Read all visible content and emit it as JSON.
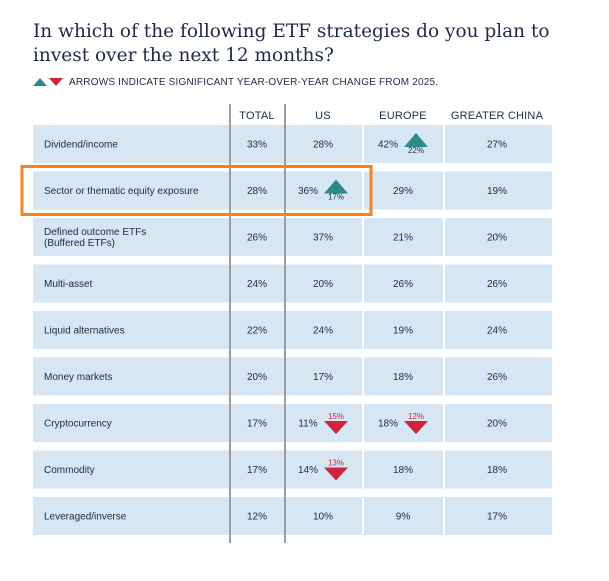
{
  "title": "In which of the following ETF strategies do you plan to invest over the next 12 months?",
  "legend_note": "ARROWS INDICATE SIGNIFICANT YEAR-OVER-YEAR CHANGE FROM 2025.",
  "colors": {
    "row_bg": "#d6e6f3",
    "text": "#1f2a44",
    "up": "#2e8b8b",
    "down": "#d0243c",
    "highlight": "#f5821f",
    "divider": "#3a3a3a"
  },
  "chart_data": {
    "type": "table",
    "columns": [
      "TOTAL",
      "US",
      "EUROPE",
      "GREATER CHINA"
    ],
    "rows": [
      {
        "label": "Dividend/income",
        "values": [
          "33%",
          "28%",
          "42%",
          "27%"
        ],
        "changes": [
          null,
          null,
          {
            "dir": "up",
            "value": "22%"
          },
          null
        ],
        "highlight": false
      },
      {
        "label": "Sector or thematic equity exposure",
        "values": [
          "28%",
          "36%",
          "29%",
          "19%"
        ],
        "changes": [
          null,
          {
            "dir": "up",
            "value": "17%"
          },
          null,
          null
        ],
        "highlight": true
      },
      {
        "label": "Defined outcome ETFs\n(Buffered ETFs)",
        "values": [
          "26%",
          "37%",
          "21%",
          "20%"
        ],
        "changes": [
          null,
          null,
          null,
          null
        ],
        "highlight": false
      },
      {
        "label": "Multi-asset",
        "values": [
          "24%",
          "20%",
          "26%",
          "26%"
        ],
        "changes": [
          null,
          null,
          null,
          null
        ],
        "highlight": false
      },
      {
        "label": "Liquid alternatives",
        "values": [
          "22%",
          "24%",
          "19%",
          "24%"
        ],
        "changes": [
          null,
          null,
          null,
          null
        ],
        "highlight": false
      },
      {
        "label": "Money markets",
        "values": [
          "20%",
          "17%",
          "18%",
          "26%"
        ],
        "changes": [
          null,
          null,
          null,
          null
        ],
        "highlight": false
      },
      {
        "label": "Cryptocurrency",
        "values": [
          "17%",
          "11%",
          "18%",
          "20%"
        ],
        "changes": [
          null,
          {
            "dir": "down",
            "value": "15%"
          },
          {
            "dir": "down",
            "value": "12%"
          },
          null
        ],
        "highlight": false
      },
      {
        "label": "Commodity",
        "values": [
          "17%",
          "14%",
          "18%",
          "18%"
        ],
        "changes": [
          null,
          {
            "dir": "down",
            "value": "13%"
          },
          null,
          null
        ],
        "highlight": false
      },
      {
        "label": "Leveraged/inverse",
        "values": [
          "12%",
          "10%",
          "9%",
          "17%"
        ],
        "changes": [
          null,
          null,
          null,
          null
        ],
        "highlight": false
      }
    ]
  }
}
